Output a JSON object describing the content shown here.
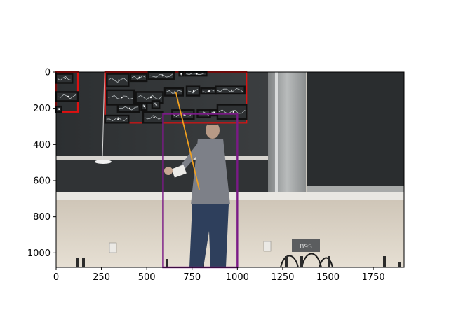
{
  "figure": {
    "x_axis": {
      "range": [
        0,
        1920
      ],
      "ticks": [
        {
          "value": 0,
          "label": "0"
        },
        {
          "value": 250,
          "label": "250"
        },
        {
          "value": 500,
          "label": "500"
        },
        {
          "value": 750,
          "label": "750"
        },
        {
          "value": 1000,
          "label": "1000"
        },
        {
          "value": 1250,
          "label": "1250"
        },
        {
          "value": 1500,
          "label": "1500"
        },
        {
          "value": 1750,
          "label": "1750"
        }
      ]
    },
    "y_axis": {
      "range": [
        0,
        1080
      ],
      "inverted": true,
      "ticks": [
        {
          "value": 0,
          "label": "0"
        },
        {
          "value": 200,
          "label": "200"
        },
        {
          "value": 400,
          "label": "400"
        },
        {
          "value": 600,
          "label": "600"
        },
        {
          "value": 800,
          "label": "800"
        },
        {
          "value": 1000,
          "label": "1000"
        }
      ]
    },
    "scene": {
      "description_type": "lecture-hall photo: person walking in front of chalkboards",
      "outlet_label": "B9S"
    },
    "annotations": {
      "colors": {
        "region_box": "#dd1111",
        "word_box": "#111111",
        "person_box": "#7a1a86",
        "pointer_line": "#f0a020"
      },
      "region_boxes": [
        {
          "x0": 0,
          "y0": 0,
          "x1": 120,
          "y1": 220
        },
        {
          "x0": 270,
          "y0": 0,
          "x1": 1050,
          "y1": 280
        }
      ],
      "word_boxes": [
        {
          "x0": 0,
          "y0": 10,
          "x1": 90,
          "y1": 60
        },
        {
          "x0": 0,
          "y0": 110,
          "x1": 120,
          "y1": 160
        },
        {
          "x0": 0,
          "y0": 190,
          "x1": 30,
          "y1": 220
        },
        {
          "x0": 280,
          "y0": 10,
          "x1": 400,
          "y1": 80
        },
        {
          "x0": 410,
          "y0": 10,
          "x1": 500,
          "y1": 50
        },
        {
          "x0": 510,
          "y0": 0,
          "x1": 650,
          "y1": 40
        },
        {
          "x0": 680,
          "y0": 0,
          "x1": 700,
          "y1": 20
        },
        {
          "x0": 710,
          "y0": 0,
          "x1": 830,
          "y1": 20
        },
        {
          "x0": 280,
          "y0": 100,
          "x1": 430,
          "y1": 180
        },
        {
          "x0": 440,
          "y0": 110,
          "x1": 590,
          "y1": 170
        },
        {
          "x0": 600,
          "y0": 90,
          "x1": 700,
          "y1": 130
        },
        {
          "x0": 720,
          "y0": 80,
          "x1": 790,
          "y1": 130
        },
        {
          "x0": 800,
          "y0": 90,
          "x1": 880,
          "y1": 120
        },
        {
          "x0": 880,
          "y0": 80,
          "x1": 1040,
          "y1": 120
        },
        {
          "x0": 340,
          "y0": 180,
          "x1": 460,
          "y1": 220
        },
        {
          "x0": 470,
          "y0": 170,
          "x1": 500,
          "y1": 210
        },
        {
          "x0": 530,
          "y0": 160,
          "x1": 570,
          "y1": 200
        },
        {
          "x0": 270,
          "y0": 240,
          "x1": 400,
          "y1": 280
        },
        {
          "x0": 480,
          "y0": 220,
          "x1": 590,
          "y1": 280
        },
        {
          "x0": 640,
          "y0": 210,
          "x1": 760,
          "y1": 260
        },
        {
          "x0": 780,
          "y0": 210,
          "x1": 850,
          "y1": 250
        },
        {
          "x0": 850,
          "y0": 210,
          "x1": 890,
          "y1": 240
        },
        {
          "x0": 890,
          "y0": 180,
          "x1": 1050,
          "y1": 260
        }
      ],
      "person_box": {
        "x0": 590,
        "y0": 230,
        "x1": 1000,
        "y1": 1080
      },
      "person_divider_y": 230,
      "pointer_line": {
        "x0": 660,
        "y0": 110,
        "x1": 790,
        "y1": 650
      }
    }
  }
}
